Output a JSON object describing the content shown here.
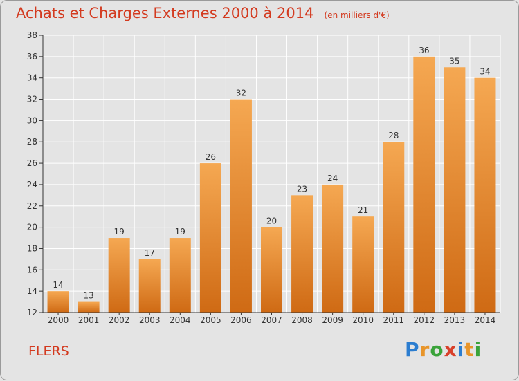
{
  "chart_data": {
    "type": "bar",
    "title": "Achats et Charges Externes 2000 à 2014",
    "unit_note": "(en milliers d'€)",
    "categories": [
      "2000",
      "2001",
      "2002",
      "2003",
      "2004",
      "2005",
      "2006",
      "2007",
      "2008",
      "2009",
      "2010",
      "2011",
      "2012",
      "2013",
      "2014"
    ],
    "values": [
      14,
      13,
      19,
      17,
      19,
      26,
      32,
      20,
      23,
      24,
      21,
      28,
      36,
      35,
      34
    ],
    "ylim": [
      12,
      38
    ],
    "yticks": [
      12,
      14,
      16,
      18,
      20,
      22,
      24,
      26,
      28,
      30,
      32,
      34,
      36,
      38
    ],
    "grid": true,
    "bar_color_top": "#f5a852",
    "bar_color_bottom": "#cf6a14"
  },
  "footer": {
    "town": "FLERS",
    "logo_letters": [
      "P",
      "r",
      "o",
      "x",
      "i",
      "t",
      "i"
    ]
  },
  "colors": {
    "title": "#d33a1f",
    "grid": "#ffffff",
    "axis": "#333333"
  }
}
